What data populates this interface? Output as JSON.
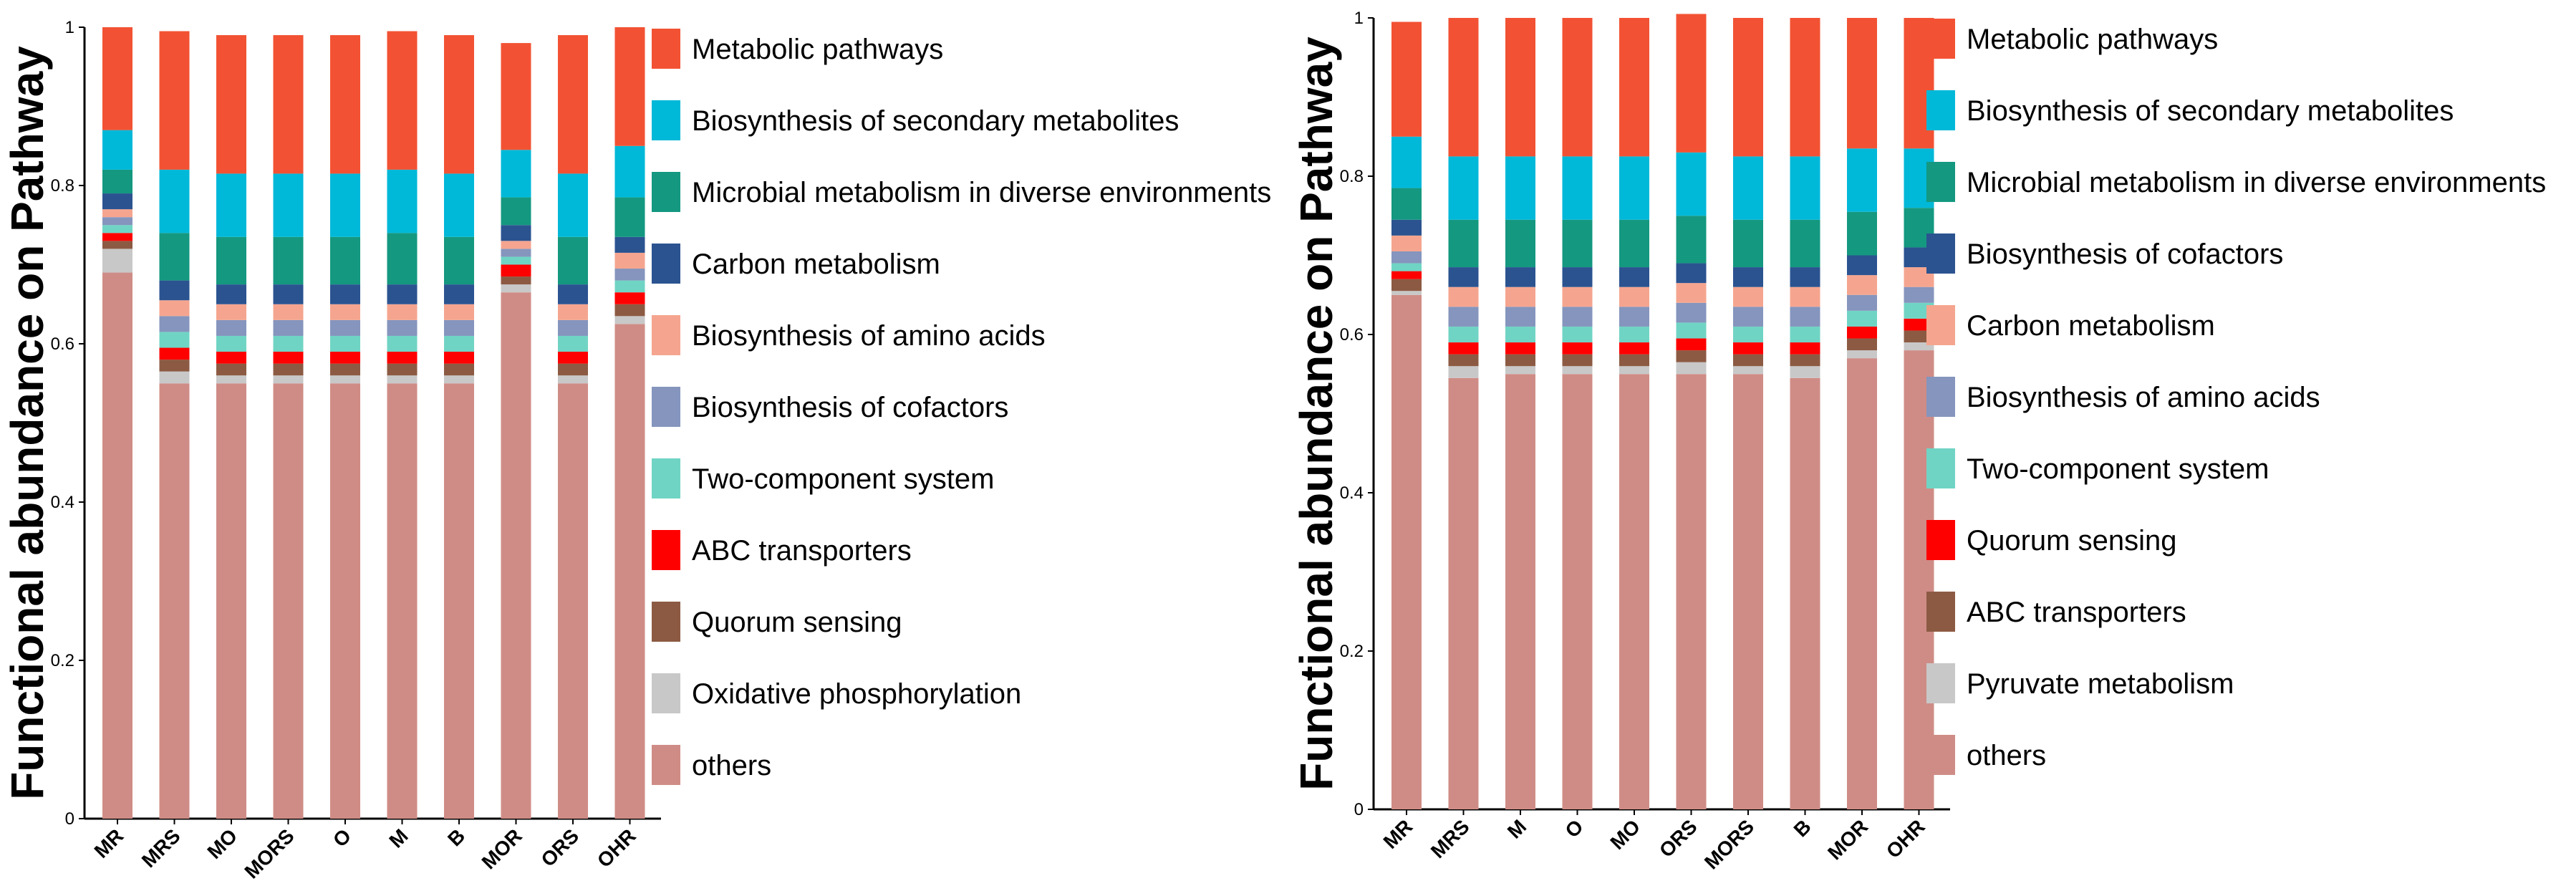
{
  "chart_data": [
    {
      "type": "bar",
      "stacked": true,
      "title": "",
      "xlabel": "",
      "ylabel": "Functional abundance on Pathway",
      "ylim": [
        0,
        1
      ],
      "yticks": [
        "0",
        "0.2",
        "0.4",
        "0.6",
        "0.8",
        "1"
      ],
      "categories": [
        "MR",
        "MRS",
        "MO",
        "MORS",
        "O",
        "M",
        "B",
        "MOR",
        "ORS",
        "OHR"
      ],
      "series": [
        {
          "name": "others",
          "color": "#cf8c86",
          "values": [
            0.69,
            0.55,
            0.55,
            0.55,
            0.55,
            0.55,
            0.55,
            0.665,
            0.55,
            0.625
          ]
        },
        {
          "name": "Oxidative phosphorylation",
          "color": "#c8c8c8",
          "values": [
            0.03,
            0.015,
            0.01,
            0.01,
            0.01,
            0.01,
            0.01,
            0.01,
            0.01,
            0.01
          ]
        },
        {
          "name": "Quorum sensing",
          "color": "#8c5a43",
          "values": [
            0.01,
            0.015,
            0.015,
            0.015,
            0.015,
            0.015,
            0.015,
            0.01,
            0.015,
            0.015
          ]
        },
        {
          "name": "ABC transporters",
          "color": "#ff0000",
          "values": [
            0.01,
            0.015,
            0.015,
            0.015,
            0.015,
            0.015,
            0.015,
            0.015,
            0.015,
            0.015
          ]
        },
        {
          "name": "Two-component system",
          "color": "#70d4c4",
          "values": [
            0.01,
            0.02,
            0.02,
            0.02,
            0.02,
            0.02,
            0.02,
            0.01,
            0.02,
            0.015
          ]
        },
        {
          "name": "Biosynthesis of cofactors",
          "color": "#8595bd",
          "values": [
            0.01,
            0.02,
            0.02,
            0.02,
            0.02,
            0.02,
            0.02,
            0.01,
            0.02,
            0.015
          ]
        },
        {
          "name": "Biosynthesis of amino acids",
          "color": "#f5a58f",
          "values": [
            0.01,
            0.02,
            0.02,
            0.02,
            0.02,
            0.02,
            0.02,
            0.01,
            0.02,
            0.02
          ]
        },
        {
          "name": "Carbon metabolism",
          "color": "#2b5390",
          "values": [
            0.02,
            0.025,
            0.025,
            0.025,
            0.025,
            0.025,
            0.025,
            0.02,
            0.025,
            0.02
          ]
        },
        {
          "name": "Microbial metabolism in diverse environments",
          "color": "#149880",
          "values": [
            0.03,
            0.06,
            0.06,
            0.06,
            0.06,
            0.065,
            0.06,
            0.035,
            0.06,
            0.05
          ]
        },
        {
          "name": "Biosynthesis of secondary metabolites",
          "color": "#00b8d8",
          "values": [
            0.05,
            0.08,
            0.08,
            0.08,
            0.08,
            0.08,
            0.08,
            0.06,
            0.08,
            0.065
          ]
        },
        {
          "name": "Metabolic pathways",
          "color": "#f25233",
          "values": [
            0.13,
            0.175,
            0.175,
            0.175,
            0.175,
            0.175,
            0.175,
            0.135,
            0.175,
            0.15
          ]
        }
      ],
      "legend": [
        "Metabolic pathways",
        "Biosynthesis of secondary metabolites",
        "Microbial metabolism in diverse environments",
        "Carbon metabolism",
        "Biosynthesis of amino acids",
        "Biosynthesis of cofactors",
        "Two-component system",
        "ABC transporters",
        "Quorum sensing",
        "Oxidative phosphorylation",
        "others"
      ]
    },
    {
      "type": "bar",
      "stacked": true,
      "title": "",
      "xlabel": "",
      "ylabel": "Functional abundance on Pathway",
      "ylim": [
        0,
        1
      ],
      "yticks": [
        "0",
        "0.2",
        "0.4",
        "0.6",
        "0.8",
        "1"
      ],
      "categories": [
        "MR",
        "MRS",
        "M",
        "O",
        "MO",
        "ORS",
        "MORS",
        "B",
        "MOR",
        "OHR"
      ],
      "series": [
        {
          "name": "others",
          "color": "#cf8c86",
          "values": [
            0.65,
            0.545,
            0.55,
            0.55,
            0.55,
            0.55,
            0.55,
            0.545,
            0.57,
            0.58
          ]
        },
        {
          "name": "Pyruvate metabolism",
          "color": "#c8c8c8",
          "values": [
            0.005,
            0.015,
            0.01,
            0.01,
            0.01,
            0.015,
            0.01,
            0.015,
            0.01,
            0.01
          ]
        },
        {
          "name": "ABC transporters",
          "color": "#8c5a43",
          "values": [
            0.015,
            0.015,
            0.015,
            0.015,
            0.015,
            0.015,
            0.015,
            0.015,
            0.015,
            0.015
          ]
        },
        {
          "name": "Quorum sensing",
          "color": "#ff0000",
          "values": [
            0.01,
            0.015,
            0.015,
            0.015,
            0.015,
            0.015,
            0.015,
            0.015,
            0.015,
            0.015
          ]
        },
        {
          "name": "Two-component system",
          "color": "#70d4c4",
          "values": [
            0.01,
            0.02,
            0.02,
            0.02,
            0.02,
            0.02,
            0.02,
            0.02,
            0.02,
            0.02
          ]
        },
        {
          "name": "Biosynthesis of amino acids",
          "color": "#8595bd",
          "values": [
            0.015,
            0.025,
            0.025,
            0.025,
            0.025,
            0.025,
            0.025,
            0.025,
            0.02,
            0.02
          ]
        },
        {
          "name": "Carbon metabolism",
          "color": "#f5a58f",
          "values": [
            0.02,
            0.025,
            0.025,
            0.025,
            0.025,
            0.025,
            0.025,
            0.025,
            0.025,
            0.025
          ]
        },
        {
          "name": "Biosynthesis of cofactors",
          "color": "#2b5390",
          "values": [
            0.02,
            0.025,
            0.025,
            0.025,
            0.025,
            0.025,
            0.025,
            0.025,
            0.025,
            0.025
          ]
        },
        {
          "name": "Microbial metabolism in diverse environments",
          "color": "#149880",
          "values": [
            0.04,
            0.06,
            0.06,
            0.06,
            0.06,
            0.06,
            0.06,
            0.06,
            0.055,
            0.05
          ]
        },
        {
          "name": "Biosynthesis of secondary metabolites",
          "color": "#00b8d8",
          "values": [
            0.065,
            0.08,
            0.08,
            0.08,
            0.08,
            0.08,
            0.08,
            0.08,
            0.08,
            0.075
          ]
        },
        {
          "name": "Metabolic pathways",
          "color": "#f25233",
          "values": [
            0.145,
            0.175,
            0.175,
            0.175,
            0.175,
            0.175,
            0.175,
            0.175,
            0.165,
            0.165
          ]
        }
      ],
      "legend": [
        "Metabolic pathways",
        "Biosynthesis of secondary metabolites",
        "Microbial metabolism in diverse environments",
        "Biosynthesis of cofactors",
        "Carbon metabolism",
        "Biosynthesis of amino acids",
        "Two-component system",
        "Quorum sensing",
        "ABC transporters",
        "Pyruvate metabolism",
        "others"
      ]
    }
  ]
}
